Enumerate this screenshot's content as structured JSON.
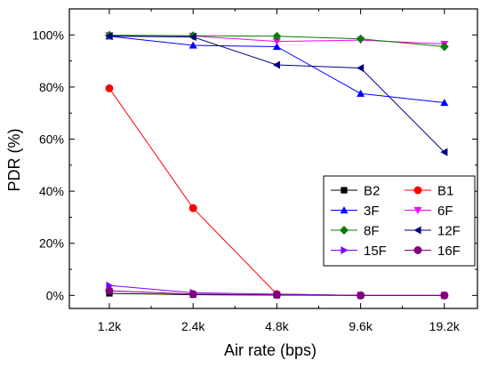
{
  "chart_data": {
    "type": "line",
    "xlabel": "Air rate (bps)",
    "ylabel": "PDR (%)",
    "categories": [
      "1.2k",
      "2.4k",
      "4.8k",
      "9.6k",
      "19.2k"
    ],
    "ylim": [
      -5,
      110
    ],
    "yticks": [
      0,
      20,
      40,
      60,
      80,
      100
    ],
    "ytick_labels": [
      "0%",
      "20%",
      "40%",
      "60%",
      "80%",
      "100%"
    ],
    "grid": false,
    "legend_position": "center-right",
    "series": [
      {
        "name": "B2",
        "color": "#000000",
        "marker": "square",
        "values": [
          0.8,
          0.3,
          0.1,
          0,
          0
        ]
      },
      {
        "name": "B1",
        "color": "#ff0000",
        "marker": "circle",
        "values": [
          79.5,
          33.5,
          0.5,
          0,
          0
        ]
      },
      {
        "name": "3F",
        "color": "#0000ff",
        "marker": "triangle-up",
        "values": [
          99.5,
          96,
          95.5,
          77.5,
          74
        ]
      },
      {
        "name": "6F",
        "color": "#ff00ff",
        "marker": "triangle-down",
        "values": [
          99.8,
          99.6,
          97.5,
          98,
          96.5
        ]
      },
      {
        "name": "8F",
        "color": "#008000",
        "marker": "diamond",
        "values": [
          99.9,
          99.7,
          99.5,
          98.5,
          95.5
        ]
      },
      {
        "name": "12F",
        "color": "#000080",
        "marker": "triangle-left",
        "values": [
          99.5,
          99.2,
          88.5,
          87.3,
          55
        ]
      },
      {
        "name": "15F",
        "color": "#8000ff",
        "marker": "triangle-right",
        "values": [
          3.8,
          1,
          0.5,
          0,
          0
        ]
      },
      {
        "name": "16F",
        "color": "#800080",
        "marker": "circle",
        "values": [
          1.8,
          0.5,
          0.2,
          0,
          0
        ]
      }
    ]
  }
}
